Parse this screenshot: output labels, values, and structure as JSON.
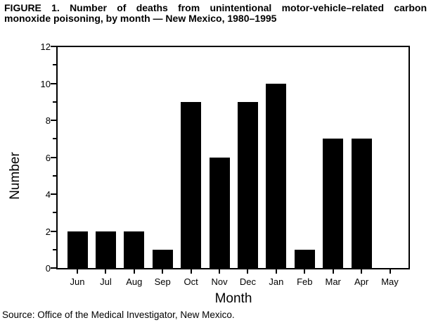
{
  "figure": {
    "title_line1": "FIGURE 1. Number of deaths from unintentional motor-vehicle–related carbon",
    "title_line2": "monoxide poisoning, by month — New Mexico, 1980–1995",
    "source_note": "Source: Office of the Medical Investigator, New Mexico."
  },
  "chart_data": {
    "type": "bar",
    "title": "FIGURE 1. Number of deaths from unintentional motor-vehicle–related carbon monoxide poisoning, by month — New Mexico, 1980–1995",
    "categories": [
      "Jun",
      "Jul",
      "Aug",
      "Sep",
      "Oct",
      "Nov",
      "Dec",
      "Jan",
      "Feb",
      "Mar",
      "Apr",
      "May"
    ],
    "values": [
      2,
      2,
      2,
      1,
      9,
      6,
      9,
      10,
      1,
      7,
      7,
      0
    ],
    "xlabel": "Month",
    "ylabel": "Number",
    "ylim": [
      0,
      12
    ],
    "y_major_tick_step": 2,
    "y_minor_tick_step": 1,
    "grid": false,
    "legend": false,
    "bar_color": "#000000",
    "axis_color": "#000000",
    "background_color": "#ffffff"
  }
}
